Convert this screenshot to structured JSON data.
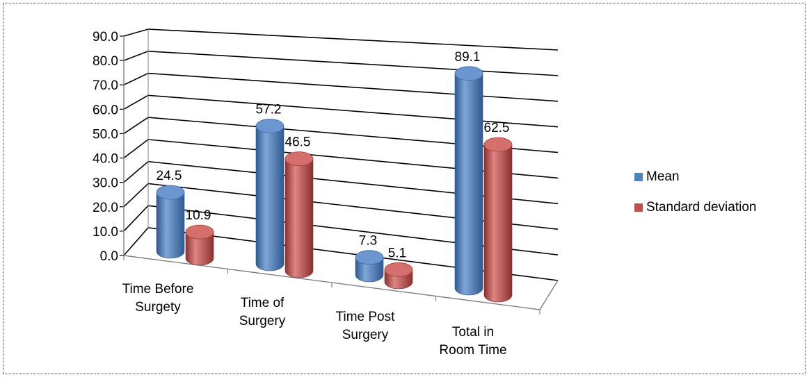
{
  "chart_data": {
    "type": "bar",
    "categories": [
      "Time Before Surgety",
      "Time of Surgery",
      "Time Post Surgery",
      "Total in Room Time"
    ],
    "series": [
      {
        "name": "Mean",
        "values": [
          24.5,
          57.2,
          7.3,
          89.1
        ],
        "color": "#4F81BD"
      },
      {
        "name": "Standard deviation",
        "values": [
          10.9,
          46.5,
          5.1,
          62.5
        ],
        "color": "#C0504D"
      }
    ],
    "data_labels": [
      [
        "24.5",
        "57.2",
        "7.3",
        "89.1"
      ],
      [
        "10.9",
        "46.5",
        "5.1",
        "62.5"
      ]
    ],
    "y_ticks": [
      "0.0",
      "10.0",
      "20.0",
      "30.0",
      "40.0",
      "50.0",
      "60.0",
      "70.0",
      "80.0",
      "90.0"
    ],
    "ylim": [
      0,
      90
    ],
    "title": "",
    "xlabel": "",
    "ylabel": "",
    "grid": true,
    "legend_position": "right",
    "style": "3d-cylinder"
  }
}
